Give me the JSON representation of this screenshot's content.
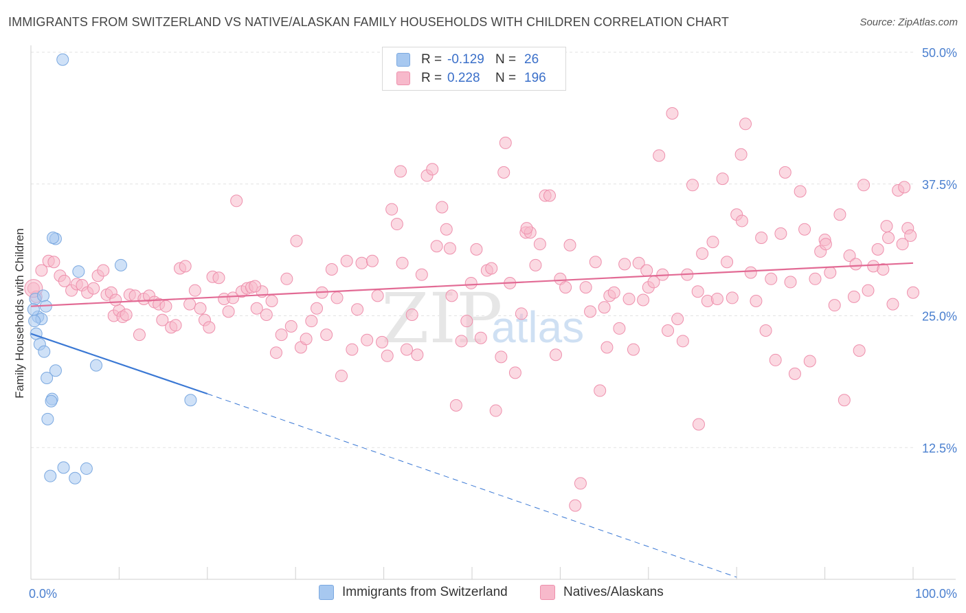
{
  "title": "IMMIGRANTS FROM SWITZERLAND VS NATIVE/ALASKAN FAMILY HOUSEHOLDS WITH CHILDREN CORRELATION CHART",
  "source": "Source: ZipAtlas.com",
  "watermark": {
    "zip": "ZIP",
    "atlas": "atlas"
  },
  "legend_stats": [
    {
      "r_label": "R =",
      "r_value": "-0.129",
      "n_label": "N =",
      "n_value": "26",
      "color": "#a7c8f0",
      "border": "#7aa8e0"
    },
    {
      "r_label": "R =",
      "r_value": "0.228",
      "n_label": "N =",
      "n_value": "196",
      "color": "#f7b9cb",
      "border": "#ee8fac"
    }
  ],
  "bottom_legend": [
    {
      "label": "Immigrants from Switzerland",
      "color": "#a7c8f0",
      "border": "#7aa8e0"
    },
    {
      "label": "Natives/Alaskans",
      "color": "#f7b9cb",
      "border": "#ee8fac"
    }
  ],
  "chart_data": {
    "type": "scatter",
    "title": "IMMIGRANTS FROM SWITZERLAND VS NATIVE/ALASKAN FAMILY HOUSEHOLDS WITH CHILDREN CORRELATION CHART",
    "xlabel": "",
    "ylabel": "Family Households with Children",
    "xlim": [
      0,
      100
    ],
    "ylim": [
      0,
      50
    ],
    "x_tick_labels": [
      "0.0%",
      "100.0%"
    ],
    "y_ticks": [
      12.5,
      25.0,
      37.5,
      50.0
    ],
    "y_tick_labels": [
      "12.5%",
      "25.0%",
      "37.5%",
      "50.0%"
    ],
    "grid": "horizontal dashed",
    "series": [
      {
        "name": "Immigrants from Switzerland",
        "color": "#a7c8f0",
        "stroke": "#7aa8e0",
        "trend": {
          "x": [
            0,
            20
          ],
          "y": [
            23.3,
            17.6
          ],
          "dashed_to": [
            80,
            0.2
          ],
          "color": "#3a78d4"
        },
        "points": [
          [
            3.6,
            49.3
          ],
          [
            0.5,
            26.6
          ],
          [
            1.4,
            26.9
          ],
          [
            1.7,
            25.9
          ],
          [
            0.8,
            24.9
          ],
          [
            1.2,
            24.7
          ],
          [
            0.4,
            24.5
          ],
          [
            0.6,
            23.3
          ],
          [
            1.0,
            22.3
          ],
          [
            1.5,
            21.6
          ],
          [
            2.8,
            32.3
          ],
          [
            2.5,
            32.4
          ],
          [
            5.4,
            29.2
          ],
          [
            10.2,
            29.8
          ],
          [
            7.4,
            20.3
          ],
          [
            2.8,
            19.8
          ],
          [
            1.8,
            19.1
          ],
          [
            2.4,
            17.1
          ],
          [
            2.3,
            16.9
          ],
          [
            1.9,
            15.2
          ],
          [
            18.1,
            17.0
          ],
          [
            3.7,
            10.6
          ],
          [
            6.3,
            10.5
          ],
          [
            2.2,
            9.8
          ],
          [
            5.0,
            9.6
          ],
          [
            0.3,
            25.6
          ]
        ]
      },
      {
        "name": "Natives/Alaskans",
        "color": "#f7b9cb",
        "stroke": "#ee8fac",
        "trend": {
          "x": [
            0,
            100
          ],
          "y": [
            25.9,
            30.0
          ],
          "color": "#e26a94"
        },
        "points": [
          [
            0.3,
            27.6
          ],
          [
            0.6,
            26.8
          ],
          [
            1.2,
            29.3
          ],
          [
            2.0,
            30.2
          ],
          [
            2.6,
            30.1
          ],
          [
            3.3,
            28.8
          ],
          [
            3.8,
            28.3
          ],
          [
            4.6,
            27.4
          ],
          [
            5.2,
            28.0
          ],
          [
            5.8,
            27.9
          ],
          [
            6.4,
            27.2
          ],
          [
            7.1,
            27.6
          ],
          [
            7.6,
            28.8
          ],
          [
            8.2,
            29.3
          ],
          [
            8.6,
            27.0
          ],
          [
            9.1,
            27.2
          ],
          [
            9.4,
            25.0
          ],
          [
            10.0,
            25.5
          ],
          [
            10.4,
            24.9
          ],
          [
            10.8,
            25.1
          ],
          [
            11.2,
            27.0
          ],
          [
            11.8,
            26.9
          ],
          [
            12.3,
            23.2
          ],
          [
            12.8,
            26.6
          ],
          [
            13.4,
            26.9
          ],
          [
            14.0,
            26.3
          ],
          [
            14.5,
            26.1
          ],
          [
            14.9,
            24.6
          ],
          [
            15.3,
            25.9
          ],
          [
            15.9,
            23.9
          ],
          [
            16.4,
            24.1
          ],
          [
            16.9,
            29.5
          ],
          [
            17.5,
            29.7
          ],
          [
            18.0,
            26.1
          ],
          [
            18.6,
            27.4
          ],
          [
            19.2,
            25.7
          ],
          [
            19.7,
            24.6
          ],
          [
            20.2,
            23.9
          ],
          [
            20.6,
            28.7
          ],
          [
            21.3,
            28.6
          ],
          [
            21.9,
            26.6
          ],
          [
            22.4,
            25.4
          ],
          [
            22.9,
            26.7
          ],
          [
            23.3,
            35.9
          ],
          [
            23.9,
            27.3
          ],
          [
            24.5,
            27.6
          ],
          [
            25.0,
            27.7
          ],
          [
            25.6,
            25.7
          ],
          [
            26.2,
            27.3
          ],
          [
            26.7,
            25.1
          ],
          [
            27.3,
            26.4
          ],
          [
            27.8,
            21.5
          ],
          [
            28.4,
            23.2
          ],
          [
            29.0,
            28.5
          ],
          [
            29.5,
            24.0
          ],
          [
            30.1,
            32.1
          ],
          [
            30.6,
            22.0
          ],
          [
            31.2,
            22.8
          ],
          [
            31.8,
            24.5
          ],
          [
            32.4,
            25.7
          ],
          [
            33.0,
            27.2
          ],
          [
            33.5,
            23.2
          ],
          [
            34.1,
            29.4
          ],
          [
            34.7,
            26.7
          ],
          [
            35.2,
            19.3
          ],
          [
            35.8,
            30.2
          ],
          [
            36.4,
            21.8
          ],
          [
            37.0,
            25.6
          ],
          [
            37.5,
            30.0
          ],
          [
            38.1,
            22.7
          ],
          [
            38.7,
            30.2
          ],
          [
            39.3,
            26.9
          ],
          [
            39.8,
            22.5
          ],
          [
            40.4,
            21.2
          ],
          [
            40.9,
            35.1
          ],
          [
            41.5,
            33.7
          ],
          [
            42.1,
            30.0
          ],
          [
            42.6,
            21.8
          ],
          [
            43.2,
            25.1
          ],
          [
            43.8,
            21.3
          ],
          [
            44.3,
            28.9
          ],
          [
            44.9,
            38.3
          ],
          [
            45.5,
            38.9
          ],
          [
            46.0,
            31.6
          ],
          [
            46.6,
            35.3
          ],
          [
            47.1,
            33.2
          ],
          [
            47.7,
            26.9
          ],
          [
            48.2,
            16.5
          ],
          [
            48.8,
            22.6
          ],
          [
            49.4,
            24.5
          ],
          [
            49.9,
            28.1
          ],
          [
            50.5,
            31.3
          ],
          [
            51.0,
            22.9
          ],
          [
            51.7,
            29.3
          ],
          [
            52.2,
            29.5
          ],
          [
            52.7,
            16.0
          ],
          [
            53.3,
            21.1
          ],
          [
            53.8,
            41.4
          ],
          [
            54.3,
            28.1
          ],
          [
            54.9,
            19.6
          ],
          [
            55.6,
            25.2
          ],
          [
            56.1,
            32.9
          ],
          [
            56.6,
            32.9
          ],
          [
            57.2,
            29.8
          ],
          [
            57.7,
            31.8
          ],
          [
            58.3,
            36.4
          ],
          [
            58.8,
            36.4
          ],
          [
            59.5,
            21.3
          ],
          [
            60.0,
            28.5
          ],
          [
            60.6,
            27.7
          ],
          [
            61.1,
            31.7
          ],
          [
            61.7,
            7.0
          ],
          [
            62.3,
            9.1
          ],
          [
            62.9,
            27.7
          ],
          [
            63.4,
            25.4
          ],
          [
            64.0,
            30.1
          ],
          [
            64.5,
            17.9
          ],
          [
            65.0,
            25.8
          ],
          [
            65.6,
            26.9
          ],
          [
            66.1,
            27.2
          ],
          [
            66.7,
            23.8
          ],
          [
            67.3,
            29.9
          ],
          [
            67.8,
            26.6
          ],
          [
            68.3,
            21.8
          ],
          [
            68.9,
            30.0
          ],
          [
            69.4,
            26.5
          ],
          [
            70.0,
            27.7
          ],
          [
            70.6,
            28.2
          ],
          [
            71.2,
            40.2
          ],
          [
            71.6,
            28.9
          ],
          [
            72.2,
            23.6
          ],
          [
            72.7,
            44.2
          ],
          [
            73.3,
            24.7
          ],
          [
            73.9,
            22.6
          ],
          [
            74.4,
            28.9
          ],
          [
            75.0,
            37.4
          ],
          [
            75.6,
            27.3
          ],
          [
            76.1,
            30.9
          ],
          [
            76.7,
            26.4
          ],
          [
            77.3,
            32.0
          ],
          [
            77.8,
            26.6
          ],
          [
            78.4,
            38.0
          ],
          [
            78.9,
            30.1
          ],
          [
            79.5,
            26.7
          ],
          [
            80.0,
            34.6
          ],
          [
            80.5,
            40.3
          ],
          [
            81.0,
            43.2
          ],
          [
            81.6,
            29.1
          ],
          [
            82.2,
            26.4
          ],
          [
            82.8,
            32.4
          ],
          [
            83.3,
            23.6
          ],
          [
            83.9,
            28.5
          ],
          [
            84.4,
            20.8
          ],
          [
            85.0,
            32.8
          ],
          [
            85.5,
            38.6
          ],
          [
            86.1,
            28.2
          ],
          [
            86.6,
            19.5
          ],
          [
            87.2,
            36.8
          ],
          [
            87.7,
            33.2
          ],
          [
            88.3,
            20.7
          ],
          [
            88.9,
            28.5
          ],
          [
            89.5,
            31.1
          ],
          [
            90.0,
            32.2
          ],
          [
            90.6,
            29.1
          ],
          [
            91.1,
            26.0
          ],
          [
            91.7,
            34.6
          ],
          [
            92.2,
            17.0
          ],
          [
            92.8,
            30.7
          ],
          [
            93.3,
            26.8
          ],
          [
            93.9,
            21.7
          ],
          [
            94.4,
            37.4
          ],
          [
            94.9,
            27.4
          ],
          [
            95.5,
            29.7
          ],
          [
            96.0,
            31.3
          ],
          [
            96.6,
            29.4
          ],
          [
            97.2,
            32.4
          ],
          [
            97.7,
            26.1
          ],
          [
            98.3,
            36.9
          ],
          [
            98.8,
            31.8
          ],
          [
            99.4,
            33.3
          ],
          [
            99.0,
            37.2
          ],
          [
            100.0,
            27.2
          ],
          [
            99.7,
            32.6
          ],
          [
            75.7,
            14.7
          ],
          [
            65.3,
            22.0
          ],
          [
            69.8,
            29.3
          ],
          [
            90.1,
            31.8
          ],
          [
            93.5,
            29.9
          ],
          [
            97.0,
            33.5
          ],
          [
            80.6,
            34.0
          ],
          [
            56.2,
            33.3
          ],
          [
            25.4,
            27.8
          ],
          [
            41.9,
            38.7
          ],
          [
            53.6,
            38.6
          ],
          [
            47.5,
            31.4
          ],
          [
            9.6,
            26.5
          ]
        ]
      }
    ]
  }
}
